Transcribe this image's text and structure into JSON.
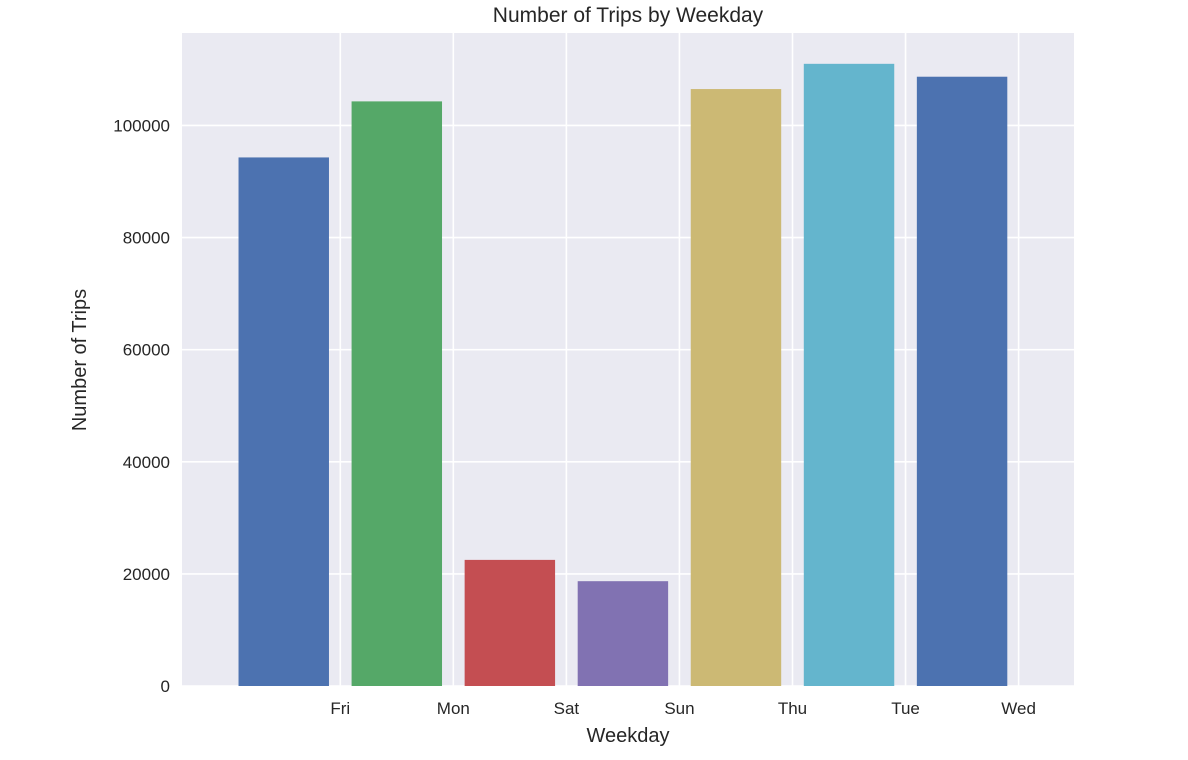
{
  "chart_data": {
    "type": "bar",
    "title": "Number of Trips by Weekday",
    "xlabel": "Weekday",
    "ylabel": "Number of Trips",
    "categories": [
      "Fri",
      "Mon",
      "Sat",
      "Sun",
      "Thu",
      "Tue",
      "Wed"
    ],
    "values": [
      94300,
      104300,
      22500,
      18700,
      106500,
      111000,
      108700
    ],
    "colors": [
      "#4c72b0",
      "#55a868",
      "#c44e52",
      "#8172b2",
      "#ccb974",
      "#64b5cd",
      "#4c72b0"
    ],
    "yticks": [
      0,
      20000,
      40000,
      60000,
      80000,
      100000
    ],
    "ytick_labels": [
      "0",
      "20000",
      "40000",
      "60000",
      "80000",
      "100000"
    ],
    "ylim": [
      0,
      116500
    ],
    "grid": true,
    "background": "#eaeaf2",
    "gridline_color": "#ffffff"
  }
}
